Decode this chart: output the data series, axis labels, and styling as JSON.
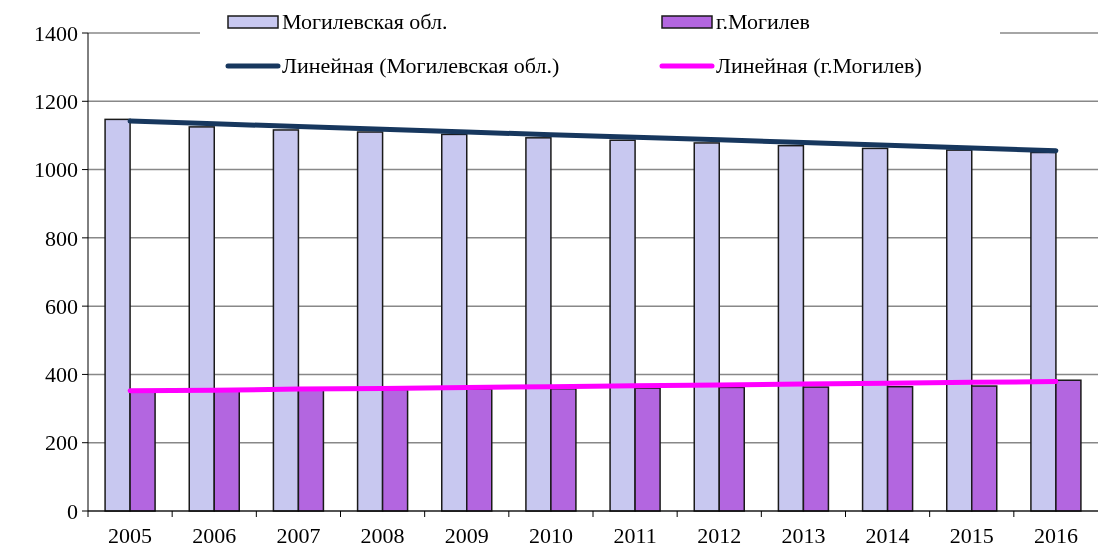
{
  "chart_data": {
    "type": "bar",
    "categories": [
      "2005",
      "2006",
      "2007",
      "2008",
      "2009",
      "2010",
      "2011",
      "2012",
      "2013",
      "2014",
      "2015",
      "2016"
    ],
    "series": [
      {
        "name": "Могилевская обл.",
        "color": "#c8c8f0",
        "values": [
          1147,
          1125,
          1116,
          1110,
          1103,
          1093,
          1086,
          1078,
          1070,
          1062,
          1057,
          1050
        ]
      },
      {
        "name": "г.Могилев",
        "color": "#b366e0",
        "values": [
          350,
          352,
          354,
          356,
          357,
          358,
          360,
          362,
          363,
          364,
          366,
          383
        ]
      },
      {
        "name": "Линейная (Могилевская обл.)",
        "type": "line",
        "color": "#17375e",
        "values": [
          1142,
          1134,
          1126,
          1118,
          1110,
          1102,
          1095,
          1087,
          1079,
          1071,
          1063,
          1055
        ]
      },
      {
        "name": "Линейная (г.Могилев)",
        "type": "line",
        "color": "#ff00ff",
        "values": [
          352,
          354,
          357,
          359,
          362,
          364,
          367,
          369,
          372,
          374,
          377,
          379
        ]
      }
    ],
    "ylim": [
      0,
      1400
    ],
    "yticks": [
      0,
      200,
      400,
      600,
      800,
      1000,
      1200,
      1400
    ],
    "grid": "y",
    "legend": "top"
  }
}
